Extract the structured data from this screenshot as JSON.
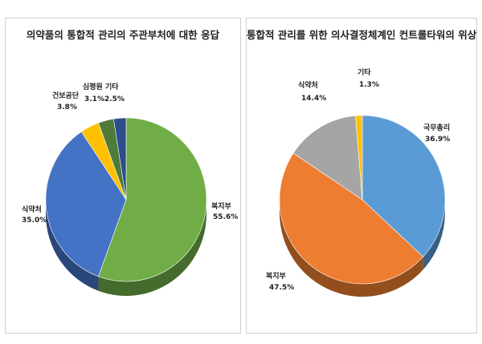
{
  "chart_data": [
    {
      "type": "pie",
      "title": "의약품의 통합적 관리의 주관부처에 대한 응답",
      "slices": [
        {
          "label": "복지부",
          "value": 55.6,
          "display": "55.6%",
          "color": "#70ad47"
        },
        {
          "label": "식약처",
          "value": 35.0,
          "display": "35.0%",
          "color": "#4472c4"
        },
        {
          "label": "건보공단",
          "value": 3.8,
          "display": "3.8%",
          "color": "#ffc000"
        },
        {
          "label": "심평원",
          "value": 3.1,
          "display": "3.1%",
          "color": "#4e7a3a"
        },
        {
          "label": "기타",
          "value": 2.5,
          "display": "2.5%",
          "color": "#2e4d8c"
        }
      ]
    },
    {
      "type": "pie",
      "title": "통합적 관리를 위한 의사결정체계인 컨트롤타워의 위상",
      "slices": [
        {
          "label": "국무총리",
          "value": 36.9,
          "display": "36.9%",
          "color": "#5b9bd5"
        },
        {
          "label": "복지부",
          "value": 47.5,
          "display": "47.5%",
          "color": "#ed7d31"
        },
        {
          "label": "식약처",
          "value": 14.4,
          "display": "14.4%",
          "color": "#a5a5a5"
        },
        {
          "label": "기타",
          "value": 1.3,
          "display": "1.3%",
          "color": "#ffc000"
        }
      ]
    }
  ]
}
